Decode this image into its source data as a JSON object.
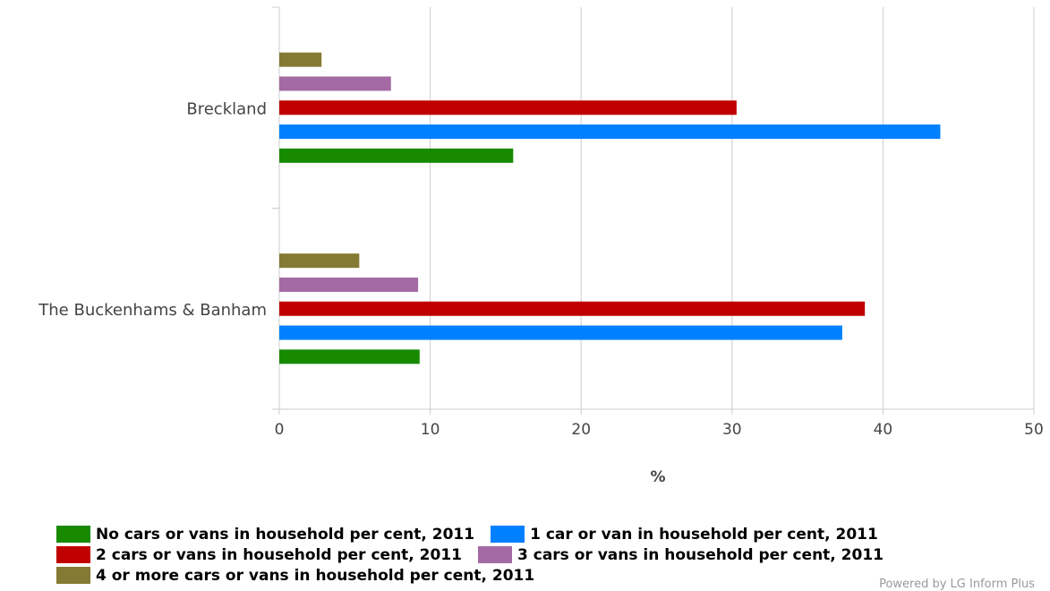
{
  "chart_data": {
    "type": "bar",
    "orientation": "horizontal",
    "categories": [
      "Breckland",
      "The Buckenhams & Banham"
    ],
    "series": [
      {
        "name": "No cars or vans in household per cent, 2011",
        "color": "#178a00",
        "values": [
          15.5,
          9.3
        ]
      },
      {
        "name": "1 car or van in household per cent, 2011",
        "color": "#0080ff",
        "values": [
          43.8,
          37.3
        ]
      },
      {
        "name": "2 cars or vans in household per cent, 2011",
        "color": "#c00000",
        "values": [
          30.3,
          38.8
        ]
      },
      {
        "name": "3 cars or vans in household per cent, 2011",
        "color": "#a36aa4",
        "values": [
          7.4,
          9.2
        ]
      },
      {
        "name": "4 or more cars or vans in household per cent, 2011",
        "color": "#857a33",
        "values": [
          2.8,
          5.3
        ]
      }
    ],
    "xlabel": "%",
    "xlim": [
      0,
      50
    ],
    "xticks": [
      0,
      10,
      20,
      30,
      40,
      50
    ],
    "grid": true,
    "legend_position": "bottom"
  },
  "legend_rows": [
    [
      0,
      1
    ],
    [
      2,
      3
    ],
    [
      4
    ]
  ],
  "credit": "Powered by LG Inform Plus"
}
